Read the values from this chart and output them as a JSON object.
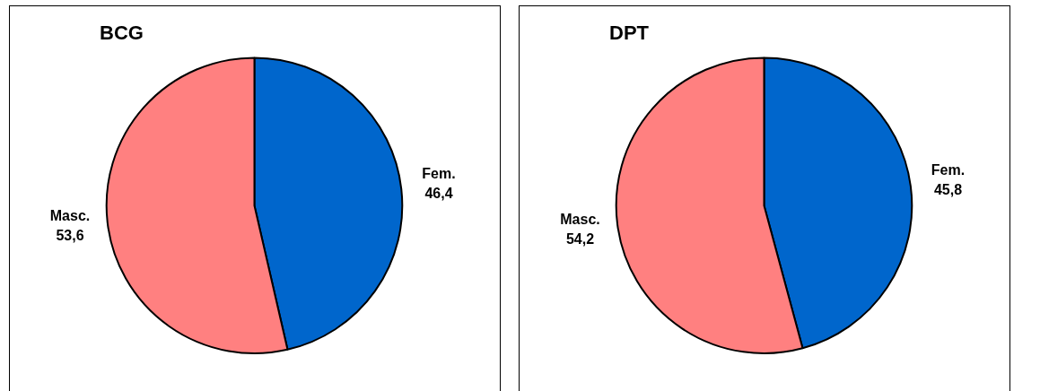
{
  "chart_data": [
    {
      "type": "pie",
      "title": "BCG",
      "categories": [
        "Fem.",
        "Masc."
      ],
      "values": [
        46.4,
        53.6
      ],
      "colors": [
        "#0066cc",
        "#ff8080"
      ],
      "value_labels": [
        "46,4",
        "53,6"
      ]
    },
    {
      "type": "pie",
      "title": "DPT",
      "categories": [
        "Fem.",
        "Masc."
      ],
      "values": [
        45.8,
        54.2
      ],
      "colors": [
        "#0066cc",
        "#ff8080"
      ],
      "value_labels": [
        "45,8",
        "54,2"
      ]
    }
  ]
}
